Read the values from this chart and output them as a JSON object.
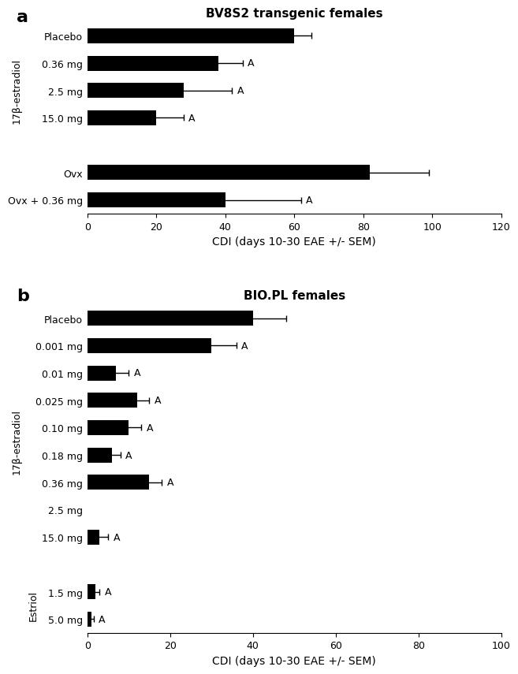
{
  "panel_a": {
    "title": "BV8S2 transgenic females",
    "categories": [
      "Placebo",
      "0.36 mg",
      "2.5 mg",
      "15.0 mg",
      "",
      "Ovx",
      "Ovx + 0.36 mg"
    ],
    "values": [
      60,
      38,
      28,
      20,
      null,
      82,
      40
    ],
    "errors": [
      5,
      7,
      14,
      8,
      null,
      17,
      22
    ],
    "sig": [
      false,
      true,
      true,
      true,
      false,
      false,
      true
    ],
    "xlim": [
      0,
      120
    ],
    "xticks": [
      0,
      20,
      40,
      60,
      80,
      100,
      120
    ],
    "xlabel": "CDI (days 10-30 EAE +/- SEM)",
    "group_label_17b": "17β-estradiol",
    "group_17b_idx": [
      1,
      2,
      3
    ],
    "group_ovx_idx": [
      5,
      6
    ]
  },
  "panel_b": {
    "title": "BIO.PL females",
    "categories": [
      "Placebo",
      "0.001 mg",
      "0.01 mg",
      "0.025 mg",
      "0.10 mg",
      "0.18 mg",
      "0.36 mg",
      "2.5 mg",
      "15.0 mg",
      "",
      "1.5 mg",
      "5.0 mg"
    ],
    "values": [
      40,
      30,
      7,
      12,
      10,
      6,
      15,
      0,
      3,
      null,
      2,
      1
    ],
    "errors": [
      8,
      6,
      3,
      3,
      3,
      2,
      3,
      0,
      2,
      null,
      1,
      0.5
    ],
    "sig": [
      false,
      true,
      true,
      true,
      true,
      true,
      true,
      false,
      true,
      false,
      true,
      true
    ],
    "xlim": [
      0,
      100
    ],
    "xticks": [
      0,
      20,
      40,
      60,
      80,
      100
    ],
    "xlabel": "CDI (days 10-30 EAE +/- SEM)",
    "group_label_17b": "17β-estradiol",
    "group_17b_idx": [
      1,
      2,
      3,
      4,
      5,
      6,
      7,
      8
    ],
    "group_label_est": "Estriol",
    "group_est_idx": [
      10,
      11
    ]
  },
  "bar_color": "#000000",
  "sig_label": " A",
  "bar_height": 0.55,
  "label_fontsize": 9,
  "title_fontsize": 11,
  "tick_fontsize": 9,
  "axis_label_fontsize": 10,
  "panel_label_fontsize": 16
}
